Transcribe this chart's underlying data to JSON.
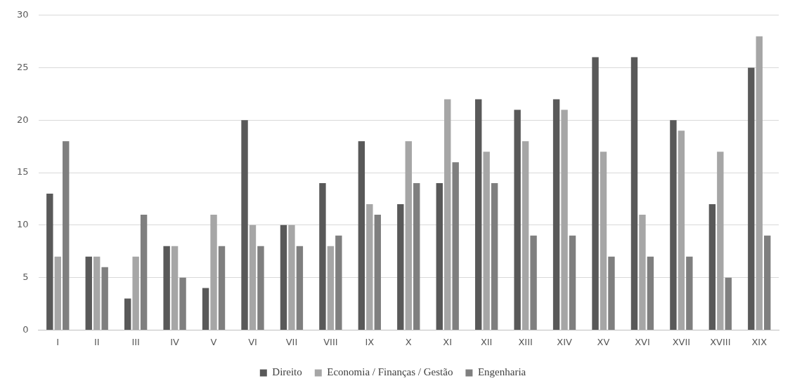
{
  "chart_data": {
    "type": "bar",
    "categories": [
      "I",
      "II",
      "III",
      "IV",
      "V",
      "VI",
      "VII",
      "VIII",
      "IX",
      "X",
      "XI",
      "XII",
      "XIII",
      "XIV",
      "XV",
      "XVI",
      "XVII",
      "XVIII",
      "XIX"
    ],
    "series": [
      {
        "name": "Direito",
        "color": "#595959",
        "values": [
          13,
          7,
          3,
          8,
          4,
          20,
          10,
          14,
          18,
          12,
          14,
          22,
          21,
          22,
          26,
          26,
          20,
          12,
          25
        ]
      },
      {
        "name": "Economia / Finanças / Gestão",
        "color": "#a6a6a6",
        "values": [
          7,
          7,
          7,
          8,
          11,
          10,
          10,
          8,
          12,
          18,
          22,
          17,
          18,
          21,
          17,
          11,
          19,
          17,
          28
        ]
      },
      {
        "name": "Engenharia",
        "color": "#7f7f7f",
        "values": [
          18,
          6,
          11,
          5,
          8,
          8,
          8,
          9,
          11,
          14,
          16,
          14,
          9,
          9,
          7,
          7,
          7,
          5,
          9
        ]
      }
    ],
    "ylim": [
      0,
      30
    ],
    "yticks": [
      0,
      5,
      10,
      15,
      20,
      25,
      30
    ],
    "grid": "y",
    "legend": "bottom"
  }
}
